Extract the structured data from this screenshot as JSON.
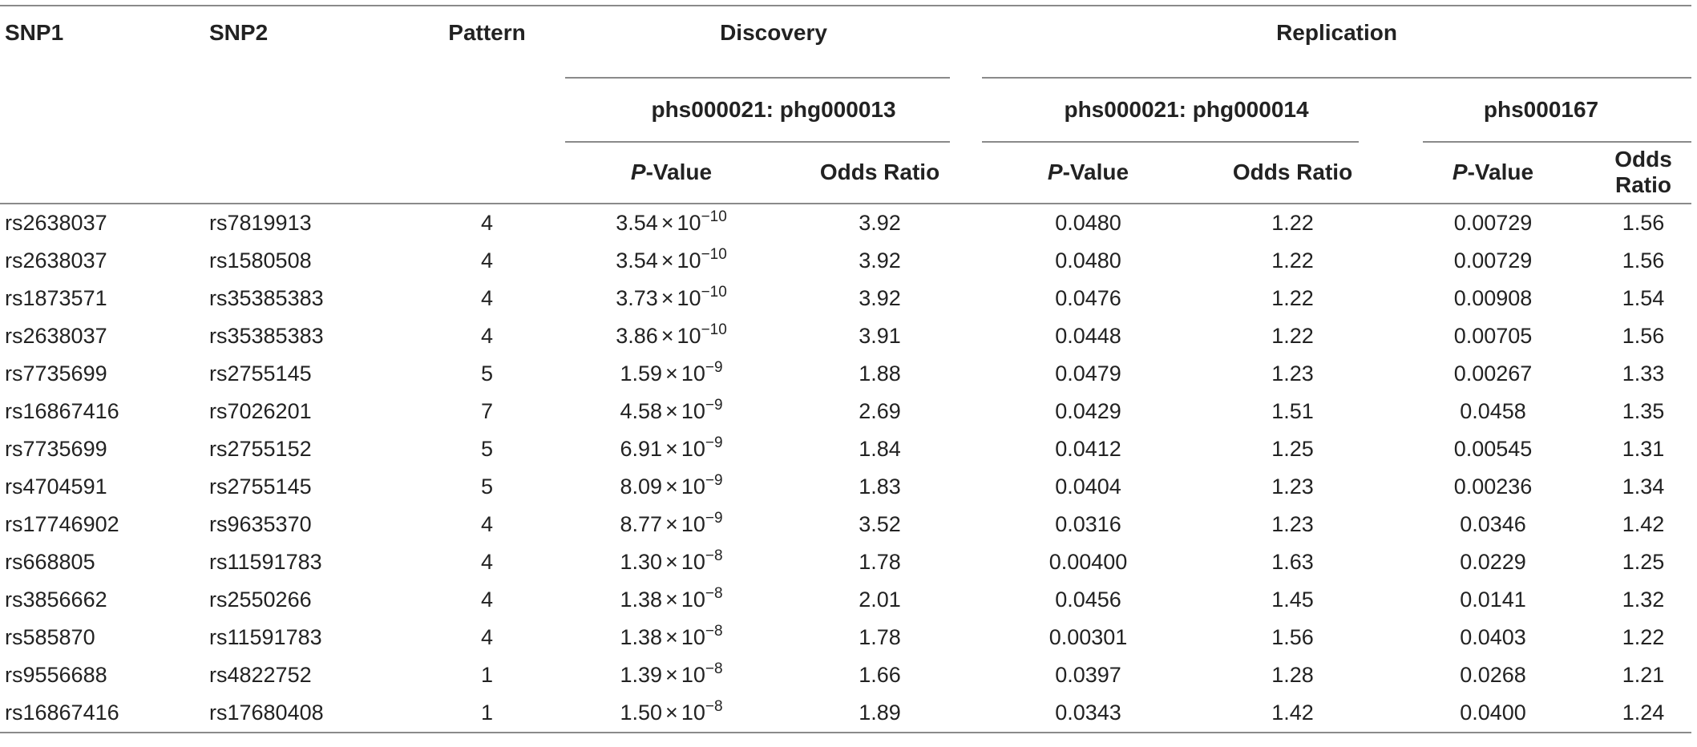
{
  "headers": {
    "snp1": "SNP1",
    "snp2": "SNP2",
    "pattern": "Pattern",
    "discovery": "Discovery",
    "replication": "Replication",
    "disc_cohort": "phs000021: phg000013",
    "rep_cohort_1": "phs000021: phg000014",
    "rep_cohort_2": "phs000167",
    "p_italic": "P",
    "p_suffix": "-Value",
    "odds_ratio": "Odds Ratio",
    "times": "×",
    "ten": "10"
  },
  "rows": [
    {
      "snp1": "rs2638037",
      "snp2": "rs7819913",
      "pattern": "4",
      "disc_p_mant": "3.54",
      "disc_p_exp": "−10",
      "disc_or": "3.92",
      "rep1_p": "0.0480",
      "rep1_or": "1.22",
      "rep2_p": "0.00729",
      "rep2_or": "1.56"
    },
    {
      "snp1": "rs2638037",
      "snp2": "rs1580508",
      "pattern": "4",
      "disc_p_mant": "3.54",
      "disc_p_exp": "−10",
      "disc_or": "3.92",
      "rep1_p": "0.0480",
      "rep1_or": "1.22",
      "rep2_p": "0.00729",
      "rep2_or": "1.56"
    },
    {
      "snp1": "rs1873571",
      "snp2": "rs35385383",
      "pattern": "4",
      "disc_p_mant": "3.73",
      "disc_p_exp": "−10",
      "disc_or": "3.92",
      "rep1_p": "0.0476",
      "rep1_or": "1.22",
      "rep2_p": "0.00908",
      "rep2_or": "1.54"
    },
    {
      "snp1": "rs2638037",
      "snp2": "rs35385383",
      "pattern": "4",
      "disc_p_mant": "3.86",
      "disc_p_exp": "−10",
      "disc_or": "3.91",
      "rep1_p": "0.0448",
      "rep1_or": "1.22",
      "rep2_p": "0.00705",
      "rep2_or": "1.56"
    },
    {
      "snp1": "rs7735699",
      "snp2": "rs2755145",
      "pattern": "5",
      "disc_p_mant": "1.59",
      "disc_p_exp": "−9",
      "disc_or": "1.88",
      "rep1_p": "0.0479",
      "rep1_or": "1.23",
      "rep2_p": "0.00267",
      "rep2_or": "1.33"
    },
    {
      "snp1": "rs16867416",
      "snp2": "rs7026201",
      "pattern": "7",
      "disc_p_mant": "4.58",
      "disc_p_exp": "−9",
      "disc_or": "2.69",
      "rep1_p": "0.0429",
      "rep1_or": "1.51",
      "rep2_p": "0.0458",
      "rep2_or": "1.35"
    },
    {
      "snp1": "rs7735699",
      "snp2": "rs2755152",
      "pattern": "5",
      "disc_p_mant": "6.91",
      "disc_p_exp": "−9",
      "disc_or": "1.84",
      "rep1_p": "0.0412",
      "rep1_or": "1.25",
      "rep2_p": "0.00545",
      "rep2_or": "1.31"
    },
    {
      "snp1": "rs4704591",
      "snp2": "rs2755145",
      "pattern": "5",
      "disc_p_mant": "8.09",
      "disc_p_exp": "−9",
      "disc_or": "1.83",
      "rep1_p": "0.0404",
      "rep1_or": "1.23",
      "rep2_p": "0.00236",
      "rep2_or": "1.34"
    },
    {
      "snp1": "rs17746902",
      "snp2": "rs9635370",
      "pattern": "4",
      "disc_p_mant": "8.77",
      "disc_p_exp": "−9",
      "disc_or": "3.52",
      "rep1_p": "0.0316",
      "rep1_or": "1.23",
      "rep2_p": "0.0346",
      "rep2_or": "1.42"
    },
    {
      "snp1": "rs668805",
      "snp2": "rs11591783",
      "pattern": "4",
      "disc_p_mant": "1.30",
      "disc_p_exp": "−8",
      "disc_or": "1.78",
      "rep1_p": "0.00400",
      "rep1_or": "1.63",
      "rep2_p": "0.0229",
      "rep2_or": "1.25"
    },
    {
      "snp1": "rs3856662",
      "snp2": "rs2550266",
      "pattern": "4",
      "disc_p_mant": "1.38",
      "disc_p_exp": "−8",
      "disc_or": "2.01",
      "rep1_p": "0.0456",
      "rep1_or": "1.45",
      "rep2_p": "0.0141",
      "rep2_or": "1.32"
    },
    {
      "snp1": "rs585870",
      "snp2": "rs11591783",
      "pattern": "4",
      "disc_p_mant": "1.38",
      "disc_p_exp": "−8",
      "disc_or": "1.78",
      "rep1_p": "0.00301",
      "rep1_or": "1.56",
      "rep2_p": "0.0403",
      "rep2_or": "1.22"
    },
    {
      "snp1": "rs9556688",
      "snp2": "rs4822752",
      "pattern": "1",
      "disc_p_mant": "1.39",
      "disc_p_exp": "−8",
      "disc_or": "1.66",
      "rep1_p": "0.0397",
      "rep1_or": "1.28",
      "rep2_p": "0.0268",
      "rep2_or": "1.21"
    },
    {
      "snp1": "rs16867416",
      "snp2": "rs17680408",
      "pattern": "1",
      "disc_p_mant": "1.50",
      "disc_p_exp": "−8",
      "disc_or": "1.89",
      "rep1_p": "0.0343",
      "rep1_or": "1.42",
      "rep2_p": "0.0400",
      "rep2_or": "1.24"
    }
  ]
}
